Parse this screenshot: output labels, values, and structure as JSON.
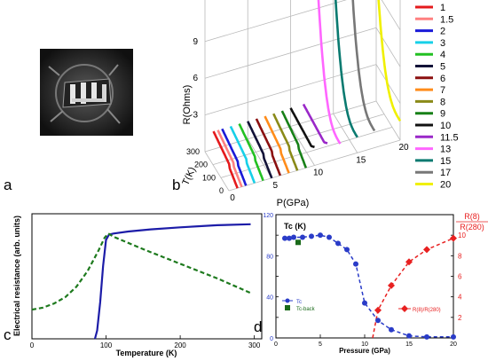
{
  "panel_labels": {
    "a": "a",
    "b": "b",
    "c": "c",
    "d": "d"
  },
  "chart_data": [
    {
      "panel": "b",
      "type": "line",
      "z_axis_label": "R(Ohms)",
      "x_axis_label": "P(GPa)",
      "y_axis_label": "T(K)",
      "z_ticks": [
        "3",
        "6",
        "9"
      ],
      "x_ticks": [
        "0",
        "5",
        "10",
        "15",
        "20"
      ],
      "y_ticks": [
        "300",
        "200",
        "100",
        "0"
      ],
      "legend_position": "right",
      "series": [
        {
          "name": "1",
          "color": "#e41a1c",
          "pressure": 1
        },
        {
          "name": "1.5",
          "color": "#ff8080",
          "pressure": 1.5
        },
        {
          "name": "2",
          "color": "#1a1ad8",
          "pressure": 2
        },
        {
          "name": "3",
          "color": "#17d0e8",
          "pressure": 3
        },
        {
          "name": "4",
          "color": "#22c022",
          "pressure": 4
        },
        {
          "name": "5",
          "color": "#121238",
          "pressure": 5
        },
        {
          "name": "6",
          "color": "#8b1010",
          "pressure": 6
        },
        {
          "name": "7",
          "color": "#ff8c1a",
          "pressure": 7
        },
        {
          "name": "8",
          "color": "#8a8a18",
          "pressure": 8
        },
        {
          "name": "9",
          "color": "#178017",
          "pressure": 9
        },
        {
          "name": "10",
          "color": "#111111",
          "pressure": 10
        },
        {
          "name": "11.5",
          "color": "#9a28c8",
          "pressure": 11.5
        },
        {
          "name": "13",
          "color": "#ff66ff",
          "pressure": 13
        },
        {
          "name": "15",
          "color": "#0a7a70",
          "pressure": 15
        },
        {
          "name": "17",
          "color": "#777777",
          "pressure": 17
        },
        {
          "name": "20",
          "color": "#f0f000",
          "pressure": 20
        }
      ]
    },
    {
      "panel": "c",
      "type": "line",
      "xlabel": "Temperature (K)",
      "ylabel": "Electrical resistance (arb. units)",
      "x_ticks": [
        0,
        100,
        200,
        300
      ],
      "xlim": [
        0,
        310
      ],
      "ylim": [
        0,
        1.2
      ],
      "series": [
        {
          "color": "#1c1ca8",
          "style": "solid",
          "x": [
            85,
            88,
            92,
            96,
            100,
            104,
            110,
            130,
            160,
            200,
            250,
            295
          ],
          "y": [
            0,
            0.08,
            0.35,
            0.7,
            0.95,
            1.0,
            1.01,
            1.03,
            1.05,
            1.07,
            1.09,
            1.1
          ]
        },
        {
          "color": "#1e7a1e",
          "style": "dashed",
          "x": [
            0,
            15,
            30,
            45,
            60,
            75,
            90,
            98,
            103,
            110,
            150,
            200,
            250,
            295
          ],
          "y": [
            0.28,
            0.3,
            0.34,
            0.4,
            0.5,
            0.65,
            0.85,
            0.97,
            1.01,
            0.98,
            0.86,
            0.72,
            0.58,
            0.44
          ]
        }
      ]
    },
    {
      "panel": "d",
      "type": "scatter",
      "xlabel": "Pressure (GPa)",
      "ylabel_left": "Tc (K)",
      "ylabel_right_top": "R(8)",
      "ylabel_right_bottom": "R(280)",
      "x_ticks": [
        0,
        5,
        10,
        15,
        20
      ],
      "y_left_ticks": [
        0,
        20,
        40,
        60,
        80,
        100,
        120
      ],
      "y_left_tick_labels": [
        "0",
        "40",
        "80",
        "120"
      ],
      "y_right_ticks": [
        2,
        4,
        6,
        8,
        10
      ],
      "xlim": [
        0,
        20
      ],
      "ylim_left": [
        0,
        120
      ],
      "ylim_right": [
        0,
        12
      ],
      "legend": [
        {
          "label": "Tc",
          "color": "#2a3cc8",
          "marker": "circle"
        },
        {
          "label": "Tc-back",
          "color": "#1a6a1a",
          "marker": "square"
        },
        {
          "label": "R(8)/R(280)",
          "color": "#e82020",
          "marker": "diamond"
        }
      ],
      "series": [
        {
          "name": "Tc",
          "color": "#2a3cc8",
          "axis": "left",
          "x": [
            1,
            1.5,
            2,
            3,
            4,
            5,
            6,
            7,
            8,
            9,
            10,
            11.5,
            13,
            15,
            17,
            20
          ],
          "y": [
            97,
            97,
            98,
            98,
            99,
            100,
            98,
            92,
            86,
            72,
            34,
            17,
            8,
            2,
            1,
            1
          ]
        },
        {
          "name": "Tc-back",
          "color": "#1a6a1a",
          "axis": "left",
          "x": [
            2.5
          ],
          "y": [
            93
          ]
        },
        {
          "name": "R(8)/R(280)",
          "color": "#e82020",
          "axis": "right",
          "x": [
            11.5,
            13,
            15,
            17,
            20
          ],
          "y": [
            2.7,
            5.1,
            7.4,
            8.6,
            9.7
          ]
        }
      ]
    }
  ]
}
